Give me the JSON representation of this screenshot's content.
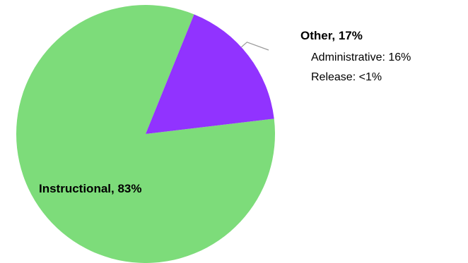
{
  "chart_data": {
    "type": "pie",
    "slices": [
      {
        "label": "Instructional",
        "value": 83,
        "display": "Instructional, 83%",
        "color": "#7ddc7a"
      },
      {
        "label": "Other",
        "value": 17,
        "display": "Other, 17%",
        "color": "#9133ff"
      }
    ],
    "other_breakdown": [
      {
        "label": "Administrative",
        "value": 16,
        "display": "Administrative: 16%"
      },
      {
        "label": "Release",
        "value": "<1",
        "display": "Release: <1%"
      }
    ],
    "leader_line_color": "#999999",
    "title": "",
    "legend": "none"
  }
}
